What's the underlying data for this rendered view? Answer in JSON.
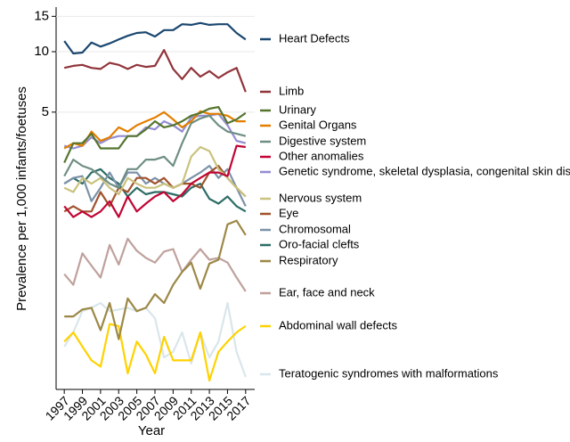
{
  "chart_data": {
    "type": "line",
    "x_label": "Year",
    "y_label": "Prevalence per 1,000 infants/foetuses",
    "x": [
      1997,
      1998,
      1999,
      2000,
      2001,
      2002,
      2003,
      2004,
      2005,
      2006,
      2007,
      2008,
      2009,
      2010,
      2011,
      2012,
      2013,
      2014,
      2015,
      2016,
      2017
    ],
    "xlim": [
      1996.1,
      2018
    ],
    "xticks": [
      1997,
      1999,
      2001,
      2003,
      2005,
      2007,
      2009,
      2011,
      2013,
      2015,
      2017
    ],
    "ylim": [
      0.21,
      16.5
    ],
    "yticks": [
      5,
      10,
      15
    ],
    "log_y": true,
    "grid": true,
    "series": [
      {
        "name": "Heart Defects",
        "color": "#1a476f",
        "values": [
          11.3,
          9.8,
          9.9,
          11.1,
          10.6,
          11.0,
          11.5,
          12.0,
          12.4,
          12.5,
          11.9,
          12.8,
          12.8,
          13.7,
          13.6,
          13.9,
          13.6,
          13.7,
          13.7,
          12.4,
          11.5
        ]
      },
      {
        "name": "Limb",
        "color": "#90353b",
        "values": [
          8.3,
          8.5,
          8.6,
          8.3,
          8.2,
          8.8,
          8.6,
          8.2,
          8.6,
          8.4,
          8.5,
          10.2,
          8.2,
          7.3,
          8.3,
          7.5,
          8.0,
          7.4,
          7.9,
          8.3,
          6.3
        ]
      },
      {
        "name": "Urinary",
        "color": "#55752f",
        "values": [
          2.8,
          3.5,
          3.5,
          3.9,
          3.3,
          3.3,
          3.3,
          3.8,
          3.8,
          4.1,
          4.5,
          4.2,
          4.3,
          4.5,
          4.8,
          4.95,
          5.2,
          5.3,
          4.4,
          4.6,
          4.95
        ]
      },
      {
        "name": "Genital Organs",
        "color": "#e37e00",
        "values": [
          3.3,
          3.5,
          3.4,
          4.0,
          3.6,
          3.75,
          4.2,
          4.0,
          4.3,
          4.5,
          4.7,
          5.0,
          4.6,
          4.2,
          4.5,
          5.05,
          4.9,
          4.9,
          4.8,
          4.5,
          4.5
        ]
      },
      {
        "name": "Digestive system",
        "color": "#6e8e84",
        "values": [
          2.4,
          2.9,
          2.7,
          2.6,
          2.4,
          2.2,
          2.1,
          2.6,
          2.6,
          2.9,
          2.9,
          3.0,
          2.7,
          3.5,
          4.4,
          4.65,
          4.8,
          4.3,
          4.0,
          3.9,
          3.8
        ]
      },
      {
        "name": "Other anomalies",
        "color": "#c10534",
        "values": [
          1.7,
          1.5,
          1.6,
          1.5,
          1.6,
          1.8,
          1.5,
          1.9,
          1.6,
          1.75,
          1.9,
          2.0,
          1.8,
          1.95,
          2.2,
          2.35,
          2.5,
          2.5,
          2.4,
          3.4,
          3.35
        ]
      },
      {
        "name": "Genetic syndrome, skeletal dysplasia, congenital skin disorders",
        "color": "#938dd2",
        "values": [
          3.4,
          3.3,
          3.4,
          3.75,
          3.5,
          3.7,
          3.8,
          3.8,
          3.8,
          4.2,
          4.1,
          4.5,
          4.3,
          4.0,
          4.7,
          4.8,
          4.8,
          4.9,
          4.3,
          3.6,
          3.5
        ]
      },
      {
        "name": "Nervous system",
        "color": "#cac27e",
        "values": [
          2.1,
          2.0,
          2.35,
          2.2,
          2.35,
          2.1,
          1.95,
          2.35,
          2.2,
          2.1,
          2.1,
          2.2,
          2.1,
          2.2,
          3.0,
          3.35,
          3.2,
          2.6,
          2.35,
          2.1,
          1.9
        ]
      },
      {
        "name": "Eye",
        "color": "#a0522d",
        "values": [
          1.6,
          1.7,
          1.6,
          1.6,
          2.0,
          1.7,
          2.1,
          2.0,
          2.35,
          2.35,
          2.2,
          2.35,
          2.1,
          2.2,
          2.2,
          2.1,
          2.5,
          2.7,
          2.35,
          2.1,
          1.9
        ]
      },
      {
        "name": "Chromosomal",
        "color": "#7b92a8",
        "values": [
          2.2,
          2.35,
          2.4,
          1.8,
          2.1,
          2.5,
          2.1,
          2.5,
          2.5,
          2.2,
          2.35,
          2.2,
          2.1,
          2.2,
          2.35,
          2.5,
          2.7,
          2.35,
          2.6,
          2.1,
          1.7
        ]
      },
      {
        "name": "Oro-facial clefts",
        "color": "#2d6d66",
        "values": [
          2.2,
          2.35,
          2.2,
          2.5,
          2.6,
          2.35,
          2.2,
          1.9,
          2.1,
          1.95,
          2.0,
          2.0,
          1.95,
          1.9,
          2.1,
          2.2,
          1.85,
          1.75,
          1.9,
          1.7,
          1.6
        ]
      },
      {
        "name": "Respiratory",
        "color": "#9c8847",
        "values": [
          0.48,
          0.48,
          0.52,
          0.53,
          0.41,
          0.56,
          0.37,
          0.59,
          0.51,
          0.53,
          0.62,
          0.56,
          0.69,
          0.8,
          0.89,
          0.66,
          0.88,
          0.92,
          1.38,
          1.44,
          1.22
        ]
      },
      {
        "name": "Ear, face and neck",
        "color": "#bfa19c",
        "values": [
          0.78,
          0.69,
          0.99,
          0.86,
          0.75,
          1.09,
          0.87,
          1.17,
          1.02,
          0.94,
          0.89,
          1.01,
          1.04,
          0.8,
          0.92,
          1.04,
          0.92,
          0.94,
          0.89,
          0.75,
          0.64
        ]
      },
      {
        "name": "Abdominal wall defects",
        "color": "#ffd200",
        "values": [
          0.36,
          0.4,
          0.34,
          0.29,
          0.27,
          0.44,
          0.43,
          0.25,
          0.36,
          0.31,
          0.25,
          0.38,
          0.29,
          0.29,
          0.29,
          0.4,
          0.23,
          0.32,
          0.36,
          0.4,
          0.43
        ]
      },
      {
        "name": "Teratogenic syndromes with malformations",
        "color": "#d9e6eb",
        "values": [
          0.34,
          0.4,
          0.51,
          0.53,
          0.56,
          0.51,
          0.52,
          0.53,
          0.51,
          0.53,
          0.47,
          0.3,
          0.32,
          0.4,
          0.28,
          0.4,
          0.3,
          0.36,
          0.56,
          0.32,
          0.24
        ]
      }
    ]
  }
}
